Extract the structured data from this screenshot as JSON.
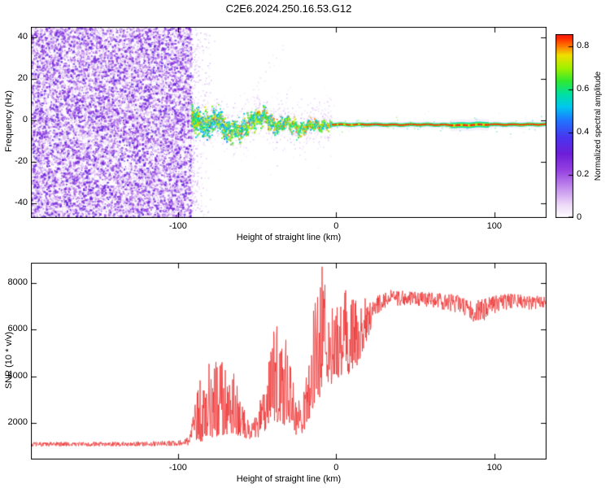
{
  "figure": {
    "title": "C2E6.2024.250.16.53.G12",
    "background": "#ffffff"
  },
  "top_panel": {
    "ylabel": "Frequency (Hz)",
    "xlabel": "Height of straight line (km)"
  },
  "bottom_panel": {
    "ylabel": "SNR (10 * v/v)",
    "xlabel": "Height of straight line (km)"
  },
  "colorbar": {
    "label": "Normalized spectral amplitude",
    "range": [
      0,
      0.857
    ],
    "ticks": [
      {
        "label": "0",
        "value": 0
      },
      {
        "label": "0.2",
        "value": 0.2
      },
      {
        "label": "0.4",
        "value": 0.4
      },
      {
        "label": "0.6",
        "value": 0.6
      },
      {
        "label": "0.8",
        "value": 0.8
      }
    ]
  },
  "chart_data": [
    {
      "type": "heatmap",
      "title": "C2E6.2024.250.16.53.G12",
      "xlabel": "Height of straight line (km)",
      "ylabel": "Frequency (Hz)",
      "xlim": [
        -193,
        133
      ],
      "ylim": [
        -47,
        45
      ],
      "x_ticks": [
        {
          "label": "-100",
          "value": -100
        },
        {
          "label": "0",
          "value": 0
        },
        {
          "label": "100",
          "value": 100
        }
      ],
      "y_ticks": [
        {
          "label": "-40",
          "value": -40
        },
        {
          "label": "-20",
          "value": -20
        },
        {
          "label": "0",
          "value": 0
        },
        {
          "label": "20",
          "value": 20
        },
        {
          "label": "40",
          "value": 40
        }
      ],
      "colorbar_label": "Normalized spectral amplitude",
      "colormap": [
        {
          "pos": 0.0,
          "color": "#ffffff"
        },
        {
          "pos": 0.06,
          "color": "#eedcf8"
        },
        {
          "pos": 0.14,
          "color": "#c490ee"
        },
        {
          "pos": 0.22,
          "color": "#9944e2"
        },
        {
          "pos": 0.3,
          "color": "#6e1ed8"
        },
        {
          "pos": 0.38,
          "color": "#4836f0"
        },
        {
          "pos": 0.46,
          "color": "#1e78ff"
        },
        {
          "pos": 0.52,
          "color": "#00c8f0"
        },
        {
          "pos": 0.58,
          "color": "#00e0a0"
        },
        {
          "pos": 0.64,
          "color": "#30e830"
        },
        {
          "pos": 0.7,
          "color": "#a0f000"
        },
        {
          "pos": 0.76,
          "color": "#f0e000"
        },
        {
          "pos": 0.8,
          "color": "#ff8000"
        },
        {
          "pos": 0.84,
          "color": "#ff2800"
        },
        {
          "pos": 0.9,
          "color": "#f00040"
        },
        {
          "pos": 1.0,
          "color": "#d8006a"
        }
      ],
      "regions": [
        {
          "name": "broadband-noise",
          "x_range": [
            -193,
            -91.5
          ],
          "freq_range": [
            -47,
            45
          ],
          "amplitude_range": [
            0.04,
            0.34
          ],
          "description": "dense purple speckle noise across all frequencies"
        },
        {
          "name": "scattered-signal",
          "x_range": [
            -91.5,
            -3
          ],
          "freq_spread_hz": 8,
          "amplitude_range": [
            0.4,
            0.8
          ],
          "description": "wandering cyan/green signal band near 0 Hz with faint purple halo"
        },
        {
          "name": "narrow-carrier",
          "x_range": [
            -3,
            133
          ],
          "center_freq_hz": -2,
          "amplitude_range": [
            0.55,
            0.857
          ],
          "description": "tight horizontal line, red core with yellow/green edges"
        }
      ],
      "carrier_track": [
        [
          -91,
          1.5
        ],
        [
          -88,
          0.5
        ],
        [
          -85,
          -1
        ],
        [
          -82,
          -2.5
        ],
        [
          -79,
          -1
        ],
        [
          -76,
          1
        ],
        [
          -73,
          -2
        ],
        [
          -70,
          -4.5
        ],
        [
          -67,
          -5.5
        ],
        [
          -64,
          -4
        ],
        [
          -61,
          -5
        ],
        [
          -58,
          -3
        ],
        [
          -55,
          -1
        ],
        [
          -52,
          0.5
        ],
        [
          -49,
          2
        ],
        [
          -46,
          3
        ],
        [
          -43,
          0
        ],
        [
          -40,
          -2
        ],
        [
          -37,
          -3
        ],
        [
          -34,
          -1.5
        ],
        [
          -31,
          0
        ],
        [
          -28,
          -2
        ],
        [
          -25,
          -3.5
        ],
        [
          -22,
          -4
        ],
        [
          -19,
          -2.5
        ],
        [
          -16,
          -1.5
        ],
        [
          -13,
          -2
        ],
        [
          -10,
          -2.5
        ],
        [
          -7,
          -2
        ],
        [
          -4,
          -2
        ],
        [
          0,
          -2
        ],
        [
          10,
          -2.1
        ],
        [
          20,
          -2
        ],
        [
          30,
          -2.1
        ],
        [
          40,
          -2.2
        ],
        [
          50,
          -2
        ],
        [
          60,
          -2.1
        ],
        [
          70,
          -2.2
        ],
        [
          80,
          -2.4
        ],
        [
          85,
          -2.2
        ],
        [
          90,
          -2.1
        ],
        [
          100,
          -2
        ],
        [
          110,
          -2.1
        ],
        [
          120,
          -2
        ],
        [
          133,
          -2
        ]
      ]
    },
    {
      "type": "line",
      "xlabel": "Height of straight line (km)",
      "ylabel": "SNR (10 * v/v)",
      "xlim": [
        -193,
        133
      ],
      "ylim": [
        435,
        8870
      ],
      "x_ticks": [
        {
          "label": "-100",
          "value": -100
        },
        {
          "label": "0",
          "value": 0
        },
        {
          "label": "100",
          "value": 100
        }
      ],
      "y_ticks": [
        {
          "label": "2000",
          "value": 2000
        },
        {
          "label": "4000",
          "value": 4000
        },
        {
          "label": "6000",
          "value": 6000
        },
        {
          "label": "8000",
          "value": 8000
        }
      ],
      "color": "#ee3333",
      "envelope": [
        [
          -193,
          1000,
          1180
        ],
        [
          -130,
          1000,
          1200
        ],
        [
          -100,
          1020,
          1250
        ],
        [
          -93,
          1050,
          1400
        ],
        [
          -90,
          1100,
          2600
        ],
        [
          -86,
          1200,
          4100
        ],
        [
          -82,
          1300,
          4700
        ],
        [
          -76,
          1400,
          4800
        ],
        [
          -70,
          1450,
          4600
        ],
        [
          -65,
          1500,
          4200
        ],
        [
          -60,
          1350,
          3000
        ],
        [
          -55,
          1300,
          2100
        ],
        [
          -50,
          1350,
          2400
        ],
        [
          -46,
          1500,
          3600
        ],
        [
          -42,
          1800,
          5200
        ],
        [
          -38,
          2000,
          6500
        ],
        [
          -34,
          1900,
          6300
        ],
        [
          -30,
          1700,
          5000
        ],
        [
          -26,
          1500,
          3200
        ],
        [
          -22,
          1500,
          2800
        ],
        [
          -18,
          2000,
          4500
        ],
        [
          -15,
          2600,
          6800
        ],
        [
          -12,
          3000,
          8000
        ],
        [
          -9,
          3200,
          8750
        ],
        [
          -6,
          3400,
          8500
        ],
        [
          -3,
          3700,
          7400
        ],
        [
          0,
          3900,
          7000
        ],
        [
          4,
          4000,
          7800
        ],
        [
          8,
          4100,
          7600
        ],
        [
          12,
          4300,
          7300
        ],
        [
          16,
          4800,
          7300
        ],
        [
          20,
          5600,
          7400
        ],
        [
          24,
          6300,
          7500
        ],
        [
          28,
          6800,
          7600
        ],
        [
          34,
          7000,
          7700
        ],
        [
          45,
          7050,
          7650
        ],
        [
          60,
          6950,
          7600
        ],
        [
          72,
          6800,
          7550
        ],
        [
          80,
          6600,
          7450
        ],
        [
          87,
          6250,
          7300
        ],
        [
          93,
          6350,
          7350
        ],
        [
          100,
          6700,
          7500
        ],
        [
          110,
          6850,
          7550
        ],
        [
          120,
          6850,
          7500
        ],
        [
          128,
          6900,
          7450
        ],
        [
          133,
          6900,
          7400
        ]
      ]
    }
  ]
}
